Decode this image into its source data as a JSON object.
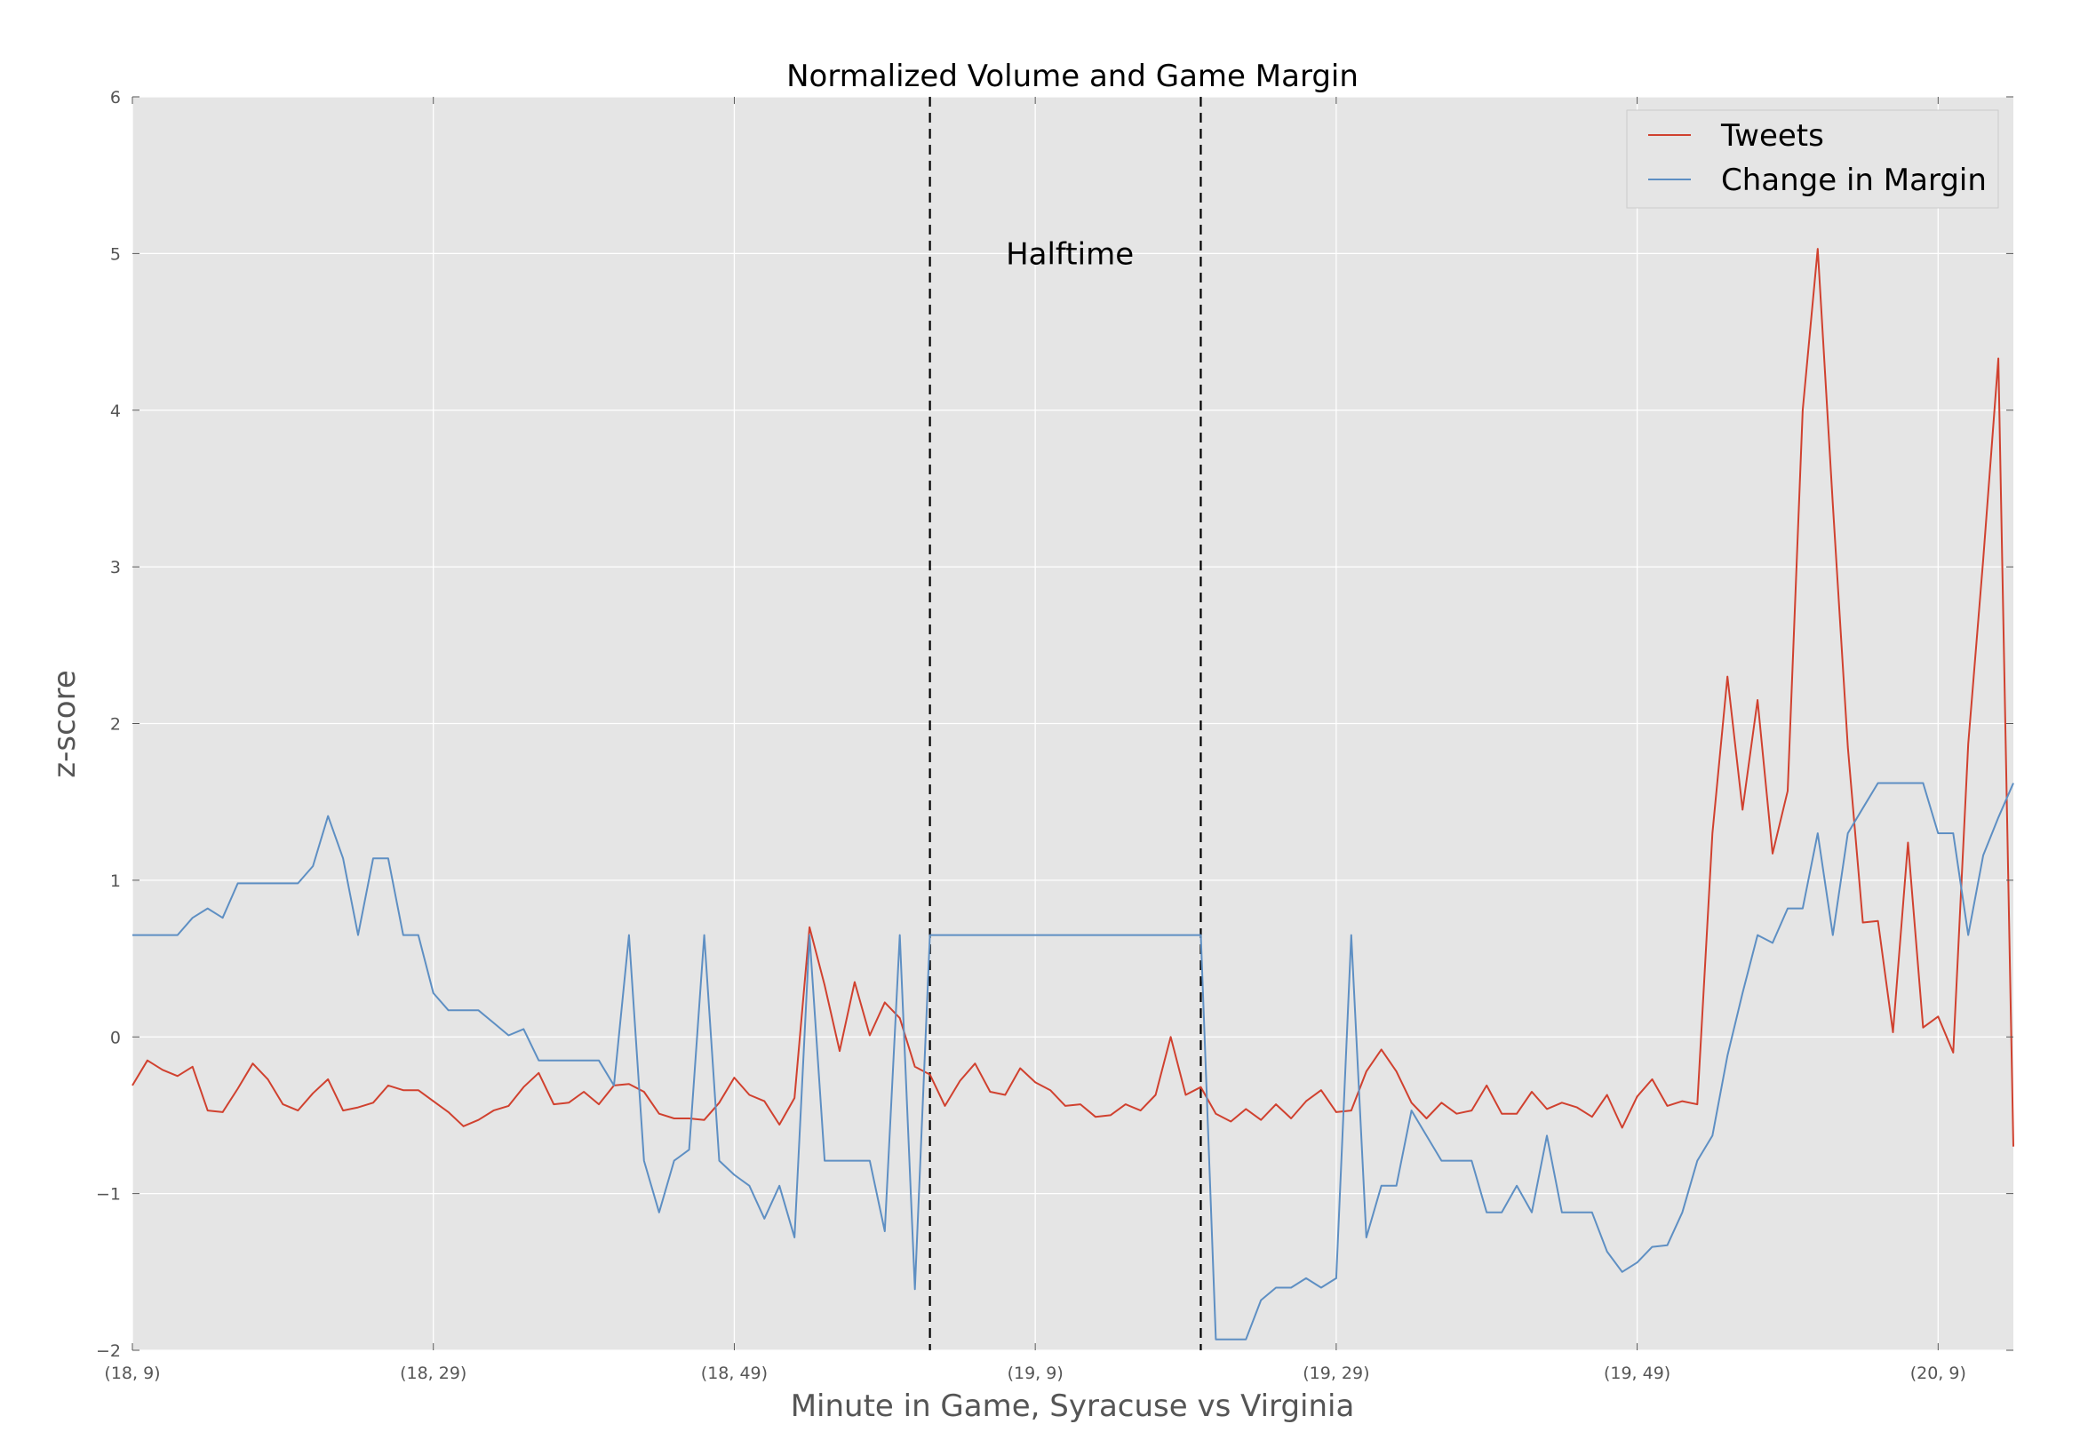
{
  "chart_data": {
    "type": "line",
    "title": "Normalized Volume and Game Margin",
    "xlabel": "Minute in Game, Syracuse vs Virginia",
    "ylabel": "z-score",
    "ylim": [
      -2,
      6
    ],
    "yticks": [
      -2,
      -1,
      0,
      1,
      2,
      3,
      4,
      5,
      6
    ],
    "ytick_labels": [
      "−2",
      "−1",
      "0",
      "1",
      "2",
      "3",
      "4",
      "5",
      "6"
    ],
    "xlim": [
      0,
      125
    ],
    "xticks": [
      0,
      20,
      40,
      60,
      80,
      100,
      120
    ],
    "xtick_labels": [
      "(18, 9)",
      "(18, 29)",
      "(18, 49)",
      "(19, 9)",
      "(19, 29)",
      "(19, 49)",
      "(20, 9)"
    ],
    "grid": true,
    "legend_position": "top-right",
    "annotations": [
      {
        "text": "Halftime",
        "x": 62.3,
        "y": 5.0
      }
    ],
    "vlines": [
      {
        "x": 53,
        "style": "dashed"
      },
      {
        "x": 71,
        "style": "dashed"
      }
    ],
    "series": [
      {
        "name": "Tweets",
        "color": "#d0412f",
        "values": [
          -0.31,
          -0.15,
          -0.21,
          -0.25,
          -0.19,
          -0.47,
          -0.48,
          -0.33,
          -0.17,
          -0.27,
          -0.43,
          -0.47,
          -0.36,
          -0.27,
          -0.47,
          -0.45,
          -0.42,
          -0.31,
          -0.34,
          -0.34,
          -0.41,
          -0.48,
          -0.57,
          -0.53,
          -0.47,
          -0.44,
          -0.32,
          -0.23,
          -0.43,
          -0.42,
          -0.35,
          -0.43,
          -0.31,
          -0.3,
          -0.35,
          -0.49,
          -0.52,
          -0.52,
          -0.53,
          -0.42,
          -0.26,
          -0.37,
          -0.41,
          -0.56,
          -0.39,
          0.7,
          0.33,
          -0.09,
          0.35,
          0.01,
          0.22,
          0.12,
          -0.19,
          -0.24,
          -0.44,
          -0.28,
          -0.17,
          -0.35,
          -0.37,
          -0.2,
          -0.29,
          -0.34,
          -0.44,
          -0.43,
          -0.51,
          -0.5,
          -0.43,
          -0.47,
          -0.37,
          0.0,
          -0.37,
          -0.32,
          -0.49,
          -0.54,
          -0.46,
          -0.53,
          -0.43,
          -0.52,
          -0.41,
          -0.34,
          -0.48,
          -0.47,
          -0.22,
          -0.08,
          -0.22,
          -0.42,
          -0.52,
          -0.42,
          -0.49,
          -0.47,
          -0.31,
          -0.49,
          -0.49,
          -0.35,
          -0.46,
          -0.42,
          -0.45,
          -0.51,
          -0.37,
          -0.58,
          -0.38,
          -0.27,
          -0.44,
          -0.41,
          -0.43,
          1.3,
          2.3,
          1.45,
          2.15,
          1.17,
          1.57,
          4.0,
          5.03,
          3.4,
          1.85,
          0.73,
          0.74,
          0.03,
          1.24,
          0.06,
          0.13,
          -0.1,
          1.87,
          3.05,
          4.33,
          -0.7
        ]
      },
      {
        "name": "Change in Margin",
        "color": "#5e8fc3",
        "values": [
          0.65,
          0.65,
          0.65,
          0.65,
          0.76,
          0.82,
          0.76,
          0.98,
          0.98,
          0.98,
          0.98,
          0.98,
          1.09,
          1.41,
          1.14,
          0.65,
          1.14,
          1.14,
          0.65,
          0.65,
          0.28,
          0.17,
          0.17,
          0.17,
          0.09,
          0.01,
          0.05,
          -0.15,
          -0.15,
          -0.15,
          -0.15,
          -0.15,
          -0.31,
          0.65,
          -0.79,
          -1.12,
          -0.79,
          -0.72,
          0.65,
          -0.79,
          -0.88,
          -0.95,
          -1.16,
          -0.95,
          -1.28,
          0.65,
          -0.79,
          -0.79,
          -0.79,
          -0.79,
          -1.24,
          0.65,
          -1.61,
          0.65,
          0.65,
          0.65,
          0.65,
          0.65,
          0.65,
          0.65,
          0.65,
          0.65,
          0.65,
          0.65,
          0.65,
          0.65,
          0.65,
          0.65,
          0.65,
          0.65,
          0.65,
          0.65,
          -1.93,
          -1.93,
          -1.93,
          -1.68,
          -1.6,
          -1.6,
          -1.54,
          -1.6,
          -1.54,
          0.65,
          -1.28,
          -0.95,
          -0.95,
          -0.47,
          -0.63,
          -0.79,
          -0.79,
          -0.79,
          -1.12,
          -1.12,
          -0.95,
          -1.12,
          -0.63,
          -1.12,
          -1.12,
          -1.12,
          -1.37,
          -1.5,
          -1.44,
          -1.34,
          -1.33,
          -1.12,
          -0.79,
          -0.63,
          -0.12,
          0.28,
          0.65,
          0.6,
          0.82,
          0.82,
          1.3,
          0.65,
          1.3,
          1.46,
          1.62,
          1.62,
          1.62,
          1.62,
          1.3,
          1.3,
          0.65,
          1.16,
          1.4,
          1.62
        ]
      }
    ]
  }
}
